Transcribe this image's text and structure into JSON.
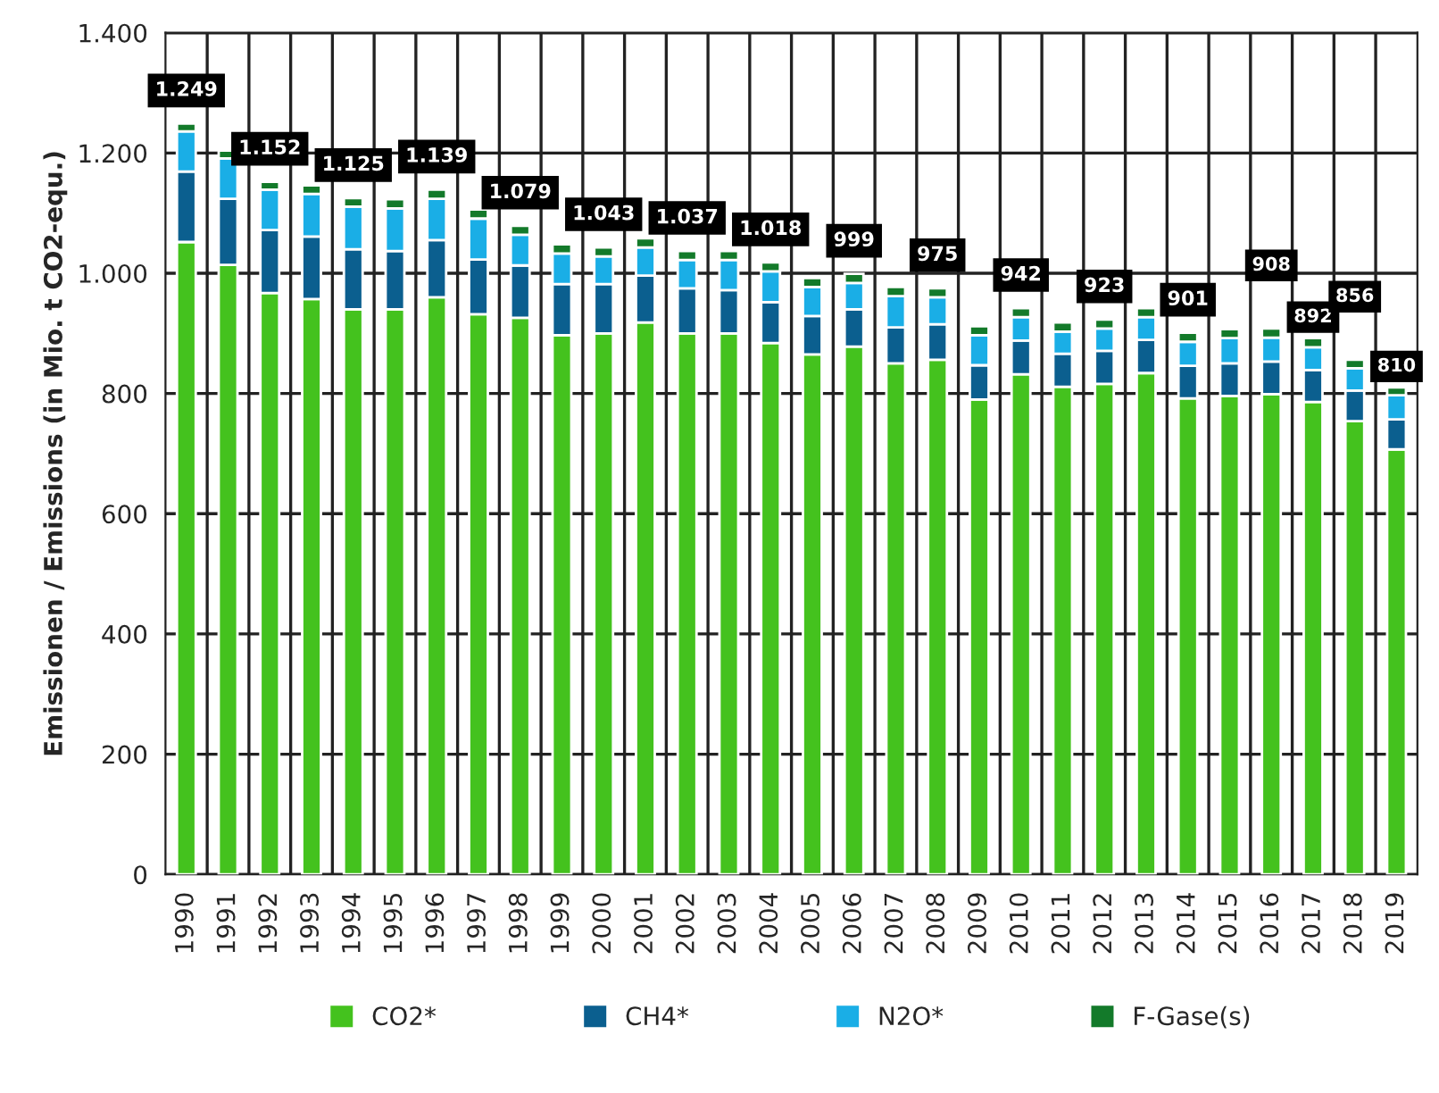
{
  "chart_data": {
    "type": "bar",
    "stacked": true,
    "ylabel": "Emissionen / Emissions (in Mio. t CO2-equ.)",
    "categories": [
      "1990",
      "1991",
      "1992",
      "1993",
      "1994",
      "1995",
      "1996",
      "1997",
      "1998",
      "1999",
      "2000",
      "2001",
      "2002",
      "2003",
      "2004",
      "2005",
      "2006",
      "2007",
      "2008",
      "2009",
      "2010",
      "2011",
      "2012",
      "2013",
      "2014",
      "2015",
      "2016",
      "2017",
      "2018",
      "2019"
    ],
    "series": [
      {
        "name": "CO2*",
        "color": "#44c21e",
        "values": [
          1052,
          1014,
          967,
          957,
          940,
          940,
          960,
          932,
          926,
          897,
          900,
          918,
          900,
          900,
          884,
          865,
          878,
          850,
          856,
          790,
          832,
          811,
          816,
          834,
          792,
          796,
          799,
          786,
          754,
          707
        ]
      },
      {
        "name": "CH4*",
        "color": "#0b5f8f",
        "values": [
          117,
          110,
          105,
          104,
          100,
          97,
          95,
          91,
          87,
          85,
          82,
          78,
          75,
          72,
          68,
          64,
          62,
          60,
          59,
          57,
          56,
          55,
          55,
          55,
          54,
          54,
          54,
          53,
          51,
          50
        ]
      },
      {
        "name": "N2O*",
        "color": "#1aaee6",
        "values": [
          67,
          67,
          67,
          71,
          71,
          71,
          69,
          68,
          51,
          51,
          46,
          47,
          47,
          50,
          51,
          48,
          44,
          52,
          45,
          50,
          39,
          37,
          37,
          38,
          40,
          42,
          40,
          38,
          37,
          40
        ]
      },
      {
        "name": "F-Gase(s)",
        "color": "#137a2a",
        "values": [
          13,
          13,
          13,
          14,
          14,
          15,
          15,
          15,
          15,
          15,
          15,
          15,
          15,
          15,
          15,
          15,
          15,
          15,
          15,
          15,
          15,
          15,
          15,
          15,
          15,
          15,
          15,
          15,
          14,
          13
        ]
      }
    ],
    "totals": [
      "1.249",
      null,
      "1.152",
      null,
      "1.125",
      null,
      "1.139",
      null,
      "1.079",
      null,
      "1.043",
      null,
      "1.037",
      null,
      "1.018",
      null,
      "999",
      null,
      "975",
      null,
      "942",
      null,
      "923",
      null,
      "901",
      null,
      "908",
      "892",
      "856",
      "810"
    ],
    "ylim": [
      0,
      1400
    ],
    "yticks": [
      0,
      200,
      400,
      600,
      {
        "value": 800,
        "label": "800"
      },
      {
        "value": 1000,
        "label": "1.000"
      },
      {
        "value": 1200,
        "label": "1.200"
      },
      {
        "value": 1400,
        "label": "1.400"
      }
    ],
    "grid": true,
    "legend": "bottom"
  }
}
